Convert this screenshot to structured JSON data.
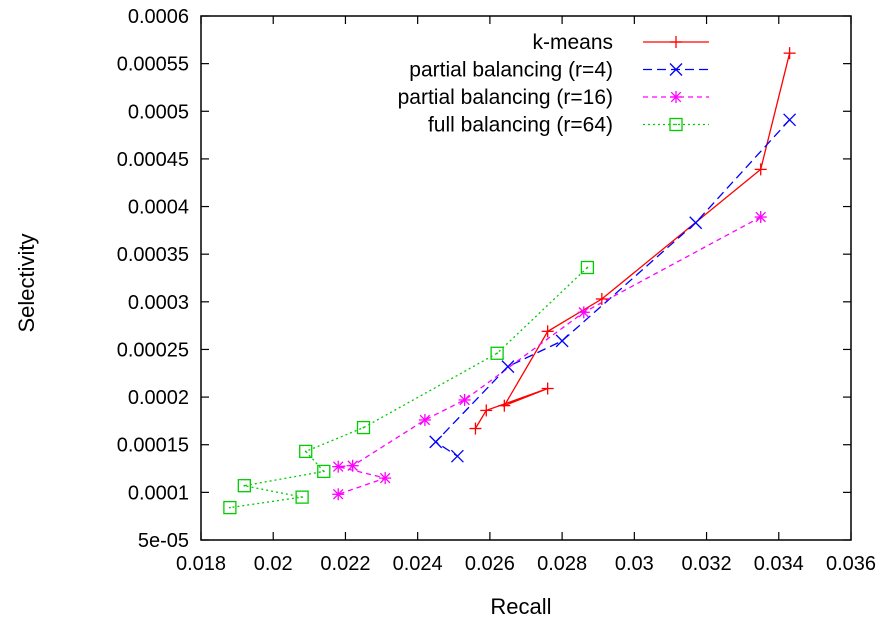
{
  "chart_data": {
    "type": "line",
    "title": "",
    "xlabel": "Recall",
    "ylabel": "Selectivity",
    "xlim": [
      0.018,
      0.036
    ],
    "ylim": [
      5e-05,
      0.0006
    ],
    "xticks": [
      "0.018",
      "0.02",
      "0.022",
      "0.024",
      "0.026",
      "0.028",
      "0.03",
      "0.032",
      "0.034",
      "0.036"
    ],
    "yticks": [
      "5e-05",
      "0.0001",
      "0.00015",
      "0.0002",
      "0.00025",
      "0.0003",
      "0.00035",
      "0.0004",
      "0.00045",
      "0.0005",
      "0.00055",
      "0.0006"
    ],
    "grid": false,
    "legend_position": "top-right",
    "series": [
      {
        "name": "k-means",
        "color": "#ff0000",
        "dash": "solid",
        "marker": "plus",
        "points": [
          [
            0.0343,
            0.000561
          ],
          [
            0.0335,
            0.000439
          ],
          [
            0.0291,
            0.000303
          ],
          [
            0.0276,
            0.000269
          ],
          [
            0.0264,
            0.000191
          ],
          [
            0.0276,
            0.000209
          ],
          [
            0.0259,
            0.000186
          ],
          [
            0.0256,
            0.000167
          ]
        ]
      },
      {
        "name": "partial balancing (r=4)",
        "color": "#0000ff",
        "dash": "long",
        "marker": "x",
        "points": [
          [
            0.0343,
            0.000491
          ],
          [
            0.0317,
            0.000383
          ],
          [
            0.028,
            0.000259
          ],
          [
            0.0265,
            0.000232
          ],
          [
            0.0245,
            0.000153
          ],
          [
            0.0251,
            0.000138
          ]
        ]
      },
      {
        "name": "partial balancing (r=16)",
        "color": "#ff00ff",
        "dash": "short",
        "marker": "star",
        "points": [
          [
            0.0335,
            0.000389
          ],
          [
            0.0286,
            0.000289
          ],
          [
            0.0253,
            0.000197
          ],
          [
            0.0242,
            0.000176
          ],
          [
            0.0222,
            0.000128
          ],
          [
            0.0218,
            0.000127
          ],
          [
            0.0231,
            0.000115
          ],
          [
            0.0218,
            9.8e-05
          ]
        ]
      },
      {
        "name": "full balancing (r=64)",
        "color": "#00cc00",
        "dash": "dotted",
        "marker": "square",
        "points": [
          [
            0.0287,
            0.000336
          ],
          [
            0.0262,
            0.000246
          ],
          [
            0.0225,
            0.000168
          ],
          [
            0.0209,
            0.000143
          ],
          [
            0.0214,
            0.000122
          ],
          [
            0.0192,
            0.000107
          ],
          [
            0.0208,
            9.5e-05
          ],
          [
            0.0188,
            8.4e-05
          ]
        ]
      }
    ]
  }
}
